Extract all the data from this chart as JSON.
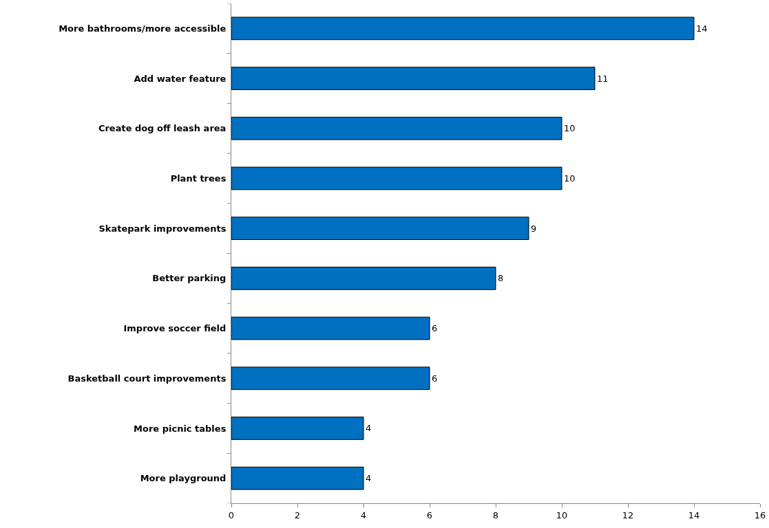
{
  "chart_data": {
    "type": "bar",
    "orientation": "horizontal",
    "categories": [
      "More bathrooms/more accessible",
      "Add water feature",
      "Create dog off leash area",
      "Plant trees",
      "Skatepark improvements",
      "Better parking",
      "Improve soccer field",
      "Basketball court improvements",
      "More picnic tables",
      "More playground"
    ],
    "values": [
      14,
      11,
      10,
      10,
      9,
      8,
      6,
      6,
      4,
      4
    ],
    "color": "#0070c0",
    "xlim": [
      0,
      16
    ],
    "xticks": [
      0,
      2,
      4,
      6,
      8,
      10,
      12,
      14,
      16
    ],
    "grid": false,
    "data_labels": true
  }
}
